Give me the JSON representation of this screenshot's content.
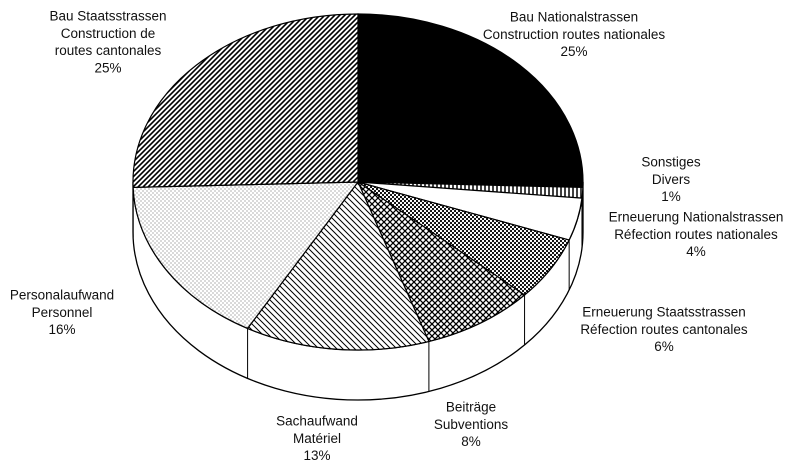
{
  "chart_data": {
    "type": "pie3d",
    "categories": [
      [
        "Bau Nationalstrassen",
        "Construction routes nationales"
      ],
      [
        "Sonstiges",
        "Divers"
      ],
      [
        "Erneuerung Nationalstrassen",
        "Réfection routes nationales"
      ],
      [
        "Erneuerung Staatsstrassen",
        "Réfection routes cantonales"
      ],
      [
        "Beiträge",
        "Subventions"
      ],
      [
        "Sachaufwand",
        "Matériel"
      ],
      [
        "Personalaufwand",
        "Personnel"
      ],
      [
        "Bau Staatsstrassen",
        "Construction de",
        "routes cantonales"
      ]
    ],
    "values": [
      25,
      1,
      4,
      6,
      8,
      13,
      16,
      25
    ],
    "value_labels": [
      "25%",
      "1%",
      "4%",
      "6%",
      "8%",
      "13%",
      "16%",
      "25%"
    ],
    "patterns": [
      "solid",
      "vertical",
      "none",
      "dots",
      "crosshatch",
      "diagonal-back",
      "fine-dots",
      "diagonal"
    ]
  }
}
